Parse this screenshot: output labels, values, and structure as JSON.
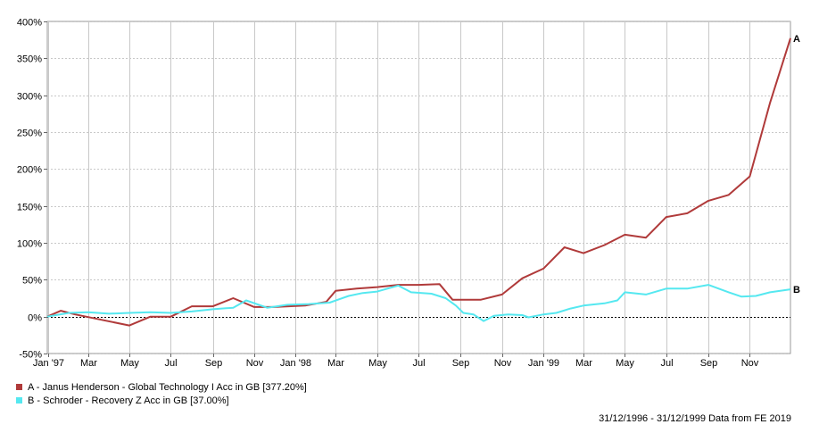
{
  "chart_data": {
    "type": "line",
    "y_unit": "%",
    "ylim": [
      -50,
      400
    ],
    "y_ticks": [
      "400%",
      "350%",
      "300%",
      "250%",
      "200%",
      "150%",
      "100%",
      "50%",
      "0%",
      "-50%"
    ],
    "y_tick_values": [
      400,
      350,
      300,
      250,
      200,
      150,
      100,
      50,
      0,
      -50
    ],
    "x_range": [
      "1996-12-31",
      "1999-12-31"
    ],
    "x_tick_labels": [
      "Jan '97",
      "Mar",
      "May",
      "Jul",
      "Sep",
      "Nov",
      "Jan '98",
      "Mar",
      "May",
      "Jul",
      "Sep",
      "Nov",
      "Jan '99",
      "Mar",
      "May",
      "Jul",
      "Sep",
      "Nov"
    ],
    "x_tick_dates": [
      "1997-01-01",
      "1997-03-01",
      "1997-05-01",
      "1997-07-01",
      "1997-09-01",
      "1997-11-01",
      "1998-01-01",
      "1998-03-01",
      "1998-05-01",
      "1998-07-01",
      "1998-09-01",
      "1998-11-01",
      "1999-01-01",
      "1999-03-01",
      "1999-05-01",
      "1999-07-01",
      "1999-09-01",
      "1999-11-01"
    ],
    "grid": true,
    "series": [
      {
        "name": "A",
        "color": "#b03a3a",
        "points": [
          [
            "1996-12-31",
            0
          ],
          [
            "1997-01-20",
            8
          ],
          [
            "1997-02-10",
            3
          ],
          [
            "1997-05-01",
            -12
          ],
          [
            "1997-06-01",
            0
          ],
          [
            "1997-07-01",
            0
          ],
          [
            "1997-08-01",
            14
          ],
          [
            "1997-09-01",
            14
          ],
          [
            "1997-10-01",
            25
          ],
          [
            "1997-11-01",
            13
          ],
          [
            "1997-12-01",
            13
          ],
          [
            "1998-01-15",
            15
          ],
          [
            "1998-02-15",
            20
          ],
          [
            "1998-03-01",
            35
          ],
          [
            "1998-04-01",
            38
          ],
          [
            "1998-05-01",
            40
          ],
          [
            "1998-06-01",
            43
          ],
          [
            "1998-07-01",
            43
          ],
          [
            "1998-08-01",
            44
          ],
          [
            "1998-08-20",
            23
          ],
          [
            "1998-10-01",
            23
          ],
          [
            "1998-11-01",
            30
          ],
          [
            "1998-12-01",
            52
          ],
          [
            "1999-01-01",
            65
          ],
          [
            "1999-02-01",
            94
          ],
          [
            "1999-03-01",
            86
          ],
          [
            "1999-04-01",
            97
          ],
          [
            "1999-05-01",
            111
          ],
          [
            "1999-06-01",
            107
          ],
          [
            "1999-07-01",
            135
          ],
          [
            "1999-08-01",
            140
          ],
          [
            "1999-09-01",
            157
          ],
          [
            "1999-10-01",
            165
          ],
          [
            "1999-11-01",
            190
          ],
          [
            "1999-12-01",
            290
          ],
          [
            "1999-12-31",
            377.2
          ]
        ]
      },
      {
        "name": "B",
        "color": "#55e8f0",
        "points": [
          [
            "1996-12-31",
            0
          ],
          [
            "1997-02-01",
            5
          ],
          [
            "1997-03-01",
            6
          ],
          [
            "1997-04-01",
            4
          ],
          [
            "1997-05-01",
            5
          ],
          [
            "1997-06-01",
            6
          ],
          [
            "1997-07-01",
            5
          ],
          [
            "1997-08-01",
            7
          ],
          [
            "1997-09-01",
            10
          ],
          [
            "1997-10-01",
            12
          ],
          [
            "1997-10-20",
            22
          ],
          [
            "1997-11-20",
            12
          ],
          [
            "1997-12-20",
            16
          ],
          [
            "1998-01-20",
            17
          ],
          [
            "1998-02-20",
            19
          ],
          [
            "1998-03-20",
            28
          ],
          [
            "1998-04-10",
            32
          ],
          [
            "1998-05-01",
            34
          ],
          [
            "1998-06-01",
            42
          ],
          [
            "1998-06-20",
            33
          ],
          [
            "1998-07-20",
            31
          ],
          [
            "1998-08-10",
            25
          ],
          [
            "1998-08-25",
            15
          ],
          [
            "1998-09-05",
            5
          ],
          [
            "1998-09-20",
            3
          ],
          [
            "1998-10-05",
            -6
          ],
          [
            "1998-10-20",
            1
          ],
          [
            "1998-11-10",
            3
          ],
          [
            "1998-12-01",
            2
          ],
          [
            "1998-12-10",
            -1
          ],
          [
            "1999-01-01",
            3
          ],
          [
            "1999-01-20",
            5
          ],
          [
            "1999-02-10",
            11
          ],
          [
            "1999-03-01",
            15
          ],
          [
            "1999-04-01",
            18
          ],
          [
            "1999-04-20",
            22
          ],
          [
            "1999-05-01",
            33
          ],
          [
            "1999-06-01",
            30
          ],
          [
            "1999-07-01",
            38
          ],
          [
            "1999-08-01",
            38
          ],
          [
            "1999-09-01",
            43
          ],
          [
            "1999-10-01",
            33
          ],
          [
            "1999-10-20",
            27
          ],
          [
            "1999-11-10",
            28
          ],
          [
            "1999-12-01",
            33
          ],
          [
            "1999-12-31",
            37
          ]
        ]
      }
    ],
    "series_end_labels": [
      "A",
      "B"
    ],
    "legend": [
      {
        "text": "A - Janus Henderson - Global Technology I Acc in GB [377.20%]",
        "color": "#b03a3a"
      },
      {
        "text": "B - Schroder - Recovery Z Acc in GB [37.00%]",
        "color": "#55e8f0"
      }
    ],
    "footer": "31/12/1996 - 31/12/1999 Data from FE 2019"
  }
}
